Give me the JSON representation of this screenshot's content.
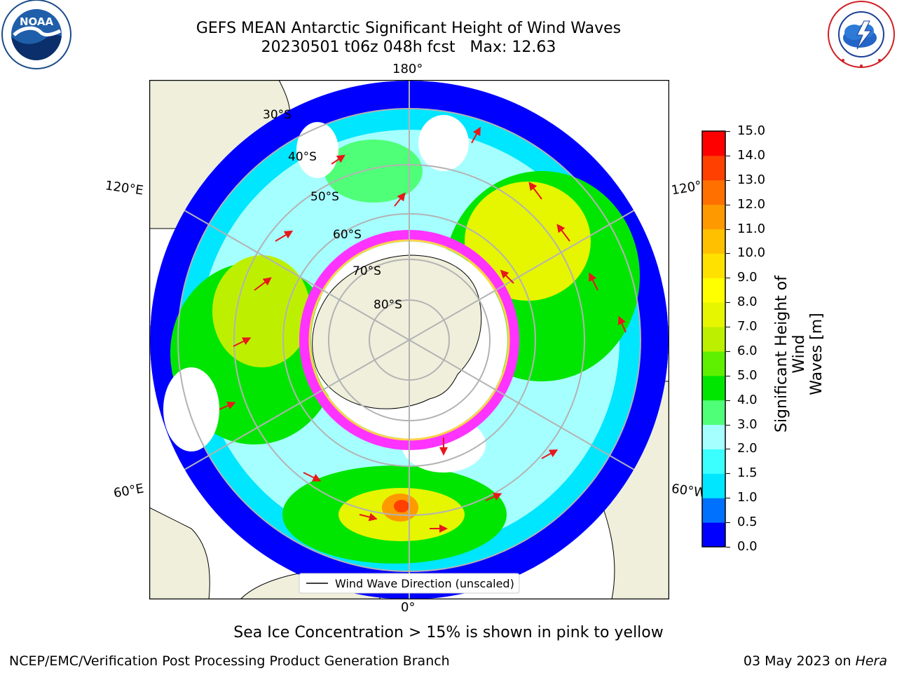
{
  "header": {
    "title_line1": "GEFS MEAN Antarctic Significant Height of Wind Waves",
    "title_line2": "20230501 t06z 048h fcst   Max: 12.63"
  },
  "logos": {
    "noaa": {
      "icon": "noaa-logo-icon",
      "text": "NOAA"
    },
    "nws": {
      "icon": "nws-logo-icon"
    }
  },
  "map": {
    "longitude_labels": {
      "top": "180°",
      "bottom": "0°",
      "left_upper": "120°E",
      "left_lower": "60°E",
      "right_upper": "120°",
      "right_lower": "60°W"
    },
    "latitude_labels": [
      "30°S",
      "40°S",
      "50°S",
      "60°S",
      "70°S",
      "80°S"
    ],
    "legend": "Wind Wave Direction (unscaled)",
    "colors": {
      "land": "#efefdc",
      "sea_ice_low": "#ff33ff",
      "sea_ice_high": "#ffd24a",
      "arrow": "#e8171b",
      "grid": "#b3b3b3"
    }
  },
  "colorbar": {
    "label_line1": "Significant Height of Wind",
    "label_line2": "Waves [m]",
    "ticks": [
      "0.0",
      "0.5",
      "1.0",
      "1.5",
      "2.0",
      "3.0",
      "4.0",
      "5.0",
      "6.0",
      "7.0",
      "8.0",
      "9.0",
      "10.0",
      "11.0",
      "12.0",
      "13.0",
      "14.0",
      "15.0"
    ],
    "colors": [
      "#0000ff",
      "#0070ff",
      "#00e6ff",
      "#3bffff",
      "#a6ffff",
      "#50ff78",
      "#00e600",
      "#5ef000",
      "#bdf000",
      "#e6f500",
      "#ffff00",
      "#ffe100",
      "#ffc000",
      "#ff9900",
      "#ff7000",
      "#ff4000",
      "#ff0000"
    ]
  },
  "captions": {
    "sea_ice_note": "Sea Ice Concentration > 15% is shown in pink to yellow",
    "credit": "NCEP/EMC/Verification Post Processing Product Generation Branch",
    "date_prefix": "03 May 2023 on ",
    "date_machine": "Hera"
  }
}
